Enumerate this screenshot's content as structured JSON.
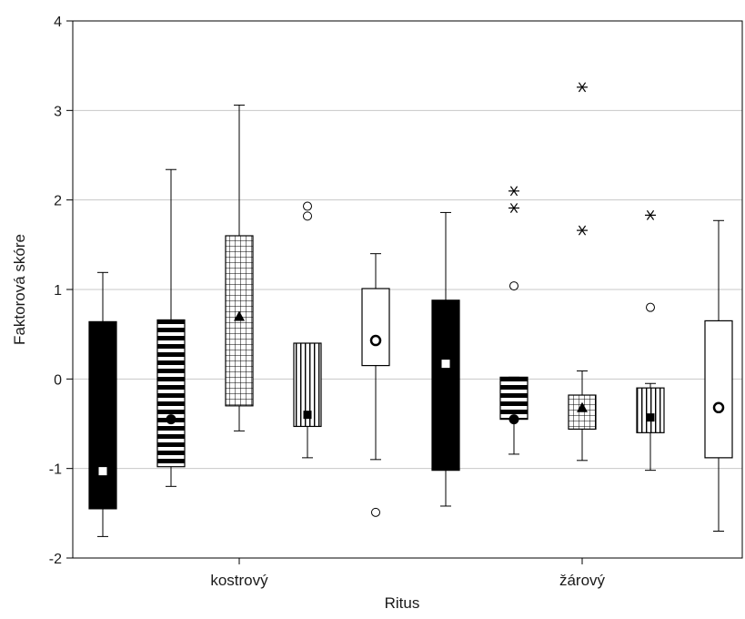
{
  "chart_data": {
    "type": "box",
    "xlabel": "Ritus",
    "ylabel": "Faktorová skóre",
    "ylim": [
      -2,
      4
    ],
    "yticks": [
      -2,
      -1,
      0,
      1,
      2,
      3,
      4
    ],
    "grid": "horizontal",
    "categories": [
      "kostrový",
      "žárový"
    ],
    "groups": [
      {
        "category": "kostrový",
        "boxes": [
          {
            "pattern": "solid-black",
            "median_marker": "square",
            "median": -1.03,
            "q1": -1.45,
            "q3": 0.64,
            "whisker_low": -1.76,
            "whisker_high": 1.19,
            "outliers": [],
            "extremes": []
          },
          {
            "pattern": "horizontal-stripes",
            "median_marker": "circle",
            "median": -0.45,
            "q1": -0.98,
            "q3": 0.66,
            "whisker_low": -1.2,
            "whisker_high": 2.34,
            "outliers": [],
            "extremes": []
          },
          {
            "pattern": "grid",
            "median_marker": "triangle",
            "median": 0.7,
            "q1": -0.3,
            "q3": 1.6,
            "whisker_low": -0.58,
            "whisker_high": 3.06,
            "outliers": [],
            "extremes": []
          },
          {
            "pattern": "vertical-stripes",
            "median_marker": "square",
            "median": -0.4,
            "q1": -0.53,
            "q3": 0.4,
            "whisker_low": -0.88,
            "whisker_high": 0.4,
            "outliers": [
              1.93,
              1.82
            ],
            "extremes": []
          },
          {
            "pattern": "white",
            "median_marker": "circle",
            "median": 0.43,
            "q1": 0.15,
            "q3": 1.01,
            "whisker_low": -0.9,
            "whisker_high": 1.4,
            "outliers": [
              -1.49
            ],
            "extremes": []
          }
        ]
      },
      {
        "category": "žárový",
        "boxes": [
          {
            "pattern": "solid-black",
            "median_marker": "square",
            "median": 0.17,
            "q1": -1.02,
            "q3": 0.88,
            "whisker_low": -1.42,
            "whisker_high": 1.86,
            "outliers": [],
            "extremes": []
          },
          {
            "pattern": "horizontal-stripes",
            "median_marker": "circle",
            "median": -0.45,
            "q1": -0.45,
            "q3": 0.02,
            "whisker_low": -0.84,
            "whisker_high": 0.02,
            "outliers": [
              1.04
            ],
            "extremes": [
              2.1,
              1.91
            ]
          },
          {
            "pattern": "grid",
            "median_marker": "triangle",
            "median": -0.32,
            "q1": -0.56,
            "q3": -0.18,
            "whisker_low": -0.91,
            "whisker_high": 0.09,
            "outliers": [],
            "extremes": [
              3.26,
              1.66
            ]
          },
          {
            "pattern": "vertical-stripes",
            "median_marker": "square",
            "median": -0.43,
            "q1": -0.6,
            "q3": -0.1,
            "whisker_low": -1.02,
            "whisker_high": -0.05,
            "outliers": [
              0.8
            ],
            "extremes": [
              1.83
            ]
          },
          {
            "pattern": "white",
            "median_marker": "circle",
            "median": -0.32,
            "q1": -0.88,
            "q3": 0.65,
            "whisker_low": -1.7,
            "whisker_high": 1.77,
            "outliers": [],
            "extremes": []
          }
        ]
      }
    ]
  }
}
